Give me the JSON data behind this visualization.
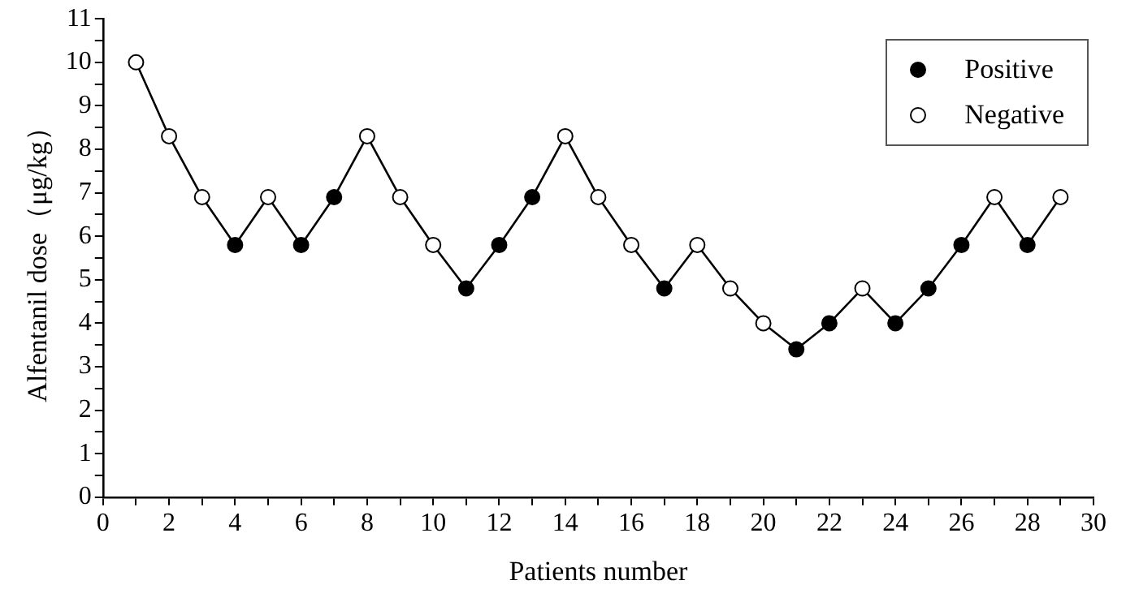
{
  "chart_data": {
    "type": "line",
    "xlabel": "Patients number",
    "ylabel": "Alfentanil dose（μg/kg）",
    "xlim": [
      0,
      30
    ],
    "xticks": [
      0,
      {
        "value": 1,
        "label": null
      },
      2,
      {
        "value": 3,
        "label": null
      },
      4,
      {
        "value": 5,
        "label": null
      },
      6,
      {
        "value": 7,
        "label": null
      },
      8,
      {
        "value": 9,
        "label": null
      },
      10,
      {
        "value": 11,
        "label": null
      },
      12,
      {
        "value": 13,
        "label": null
      },
      14,
      {
        "value": 15,
        "label": null
      },
      16,
      {
        "value": 17,
        "label": null
      },
      18,
      {
        "value": 19,
        "label": null
      },
      20,
      {
        "value": 21,
        "label": null
      },
      22,
      {
        "value": 23,
        "label": null
      },
      24,
      {
        "value": 25,
        "label": null
      },
      26,
      {
        "value": 27,
        "label": null
      },
      28,
      {
        "value": 29,
        "label": null
      },
      30
    ],
    "ylim": [
      0,
      11
    ],
    "yticks": [
      0,
      {
        "value": 0.5,
        "label": null
      },
      1,
      {
        "value": 1.5,
        "label": null
      },
      2,
      {
        "value": 2.5,
        "label": null
      },
      3,
      {
        "value": 3.5,
        "label": null
      },
      4,
      {
        "value": 4.5,
        "label": null
      },
      5,
      {
        "value": 5.5,
        "label": null
      },
      6,
      {
        "value": 6.5,
        "label": null
      },
      7,
      {
        "value": 7.5,
        "label": null
      },
      8,
      {
        "value": 8.5,
        "label": null
      },
      9,
      {
        "value": 9.5,
        "label": null
      },
      10,
      {
        "value": 10.5,
        "label": null
      },
      11
    ],
    "grid": false,
    "legend": "top right",
    "line_style": "solid",
    "series": [
      {
        "type": "line",
        "color": "#000000",
        "marker": "none",
        "x": [
          1,
          2,
          3,
          4,
          5,
          6,
          7,
          8,
          9,
          10,
          11,
          12,
          13,
          14,
          15,
          16,
          17,
          18,
          19,
          20,
          21,
          22,
          23,
          24,
          25,
          26,
          27,
          28,
          29
        ],
        "values": [
          10,
          8.3,
          6.9,
          5.8,
          6.9,
          5.8,
          6.9,
          8.3,
          6.9,
          5.8,
          4.8,
          5.8,
          6.9,
          8.3,
          6.9,
          5.8,
          4.8,
          5.8,
          4.8,
          4.0,
          3.4,
          4.0,
          4.8,
          4.0,
          4.8,
          5.8,
          6.9,
          5.8,
          6.9
        ]
      },
      {
        "type": "scatter",
        "name": "Positive",
        "color": "#000000",
        "marker": "circle",
        "x": [
          4,
          6,
          7,
          11,
          12,
          13,
          17,
          21,
          22,
          24,
          25,
          26,
          28
        ],
        "values": [
          5.8,
          5.8,
          6.9,
          4.8,
          5.8,
          6.9,
          4.8,
          3.4,
          4.0,
          4.0,
          4.8,
          5.8,
          5.8
        ]
      },
      {
        "type": "scatter",
        "name": "Negative",
        "color": "#ffffff",
        "marker": "circle",
        "x": [
          1,
          2,
          3,
          5,
          8,
          9,
          10,
          14,
          15,
          16,
          18,
          19,
          20,
          23,
          27,
          29
        ],
        "values": [
          10,
          8.3,
          6.9,
          6.9,
          8.3,
          6.9,
          5.8,
          8.3,
          6.9,
          5.8,
          5.8,
          4.8,
          4.0,
          4.8,
          6.9,
          6.9
        ]
      }
    ]
  }
}
